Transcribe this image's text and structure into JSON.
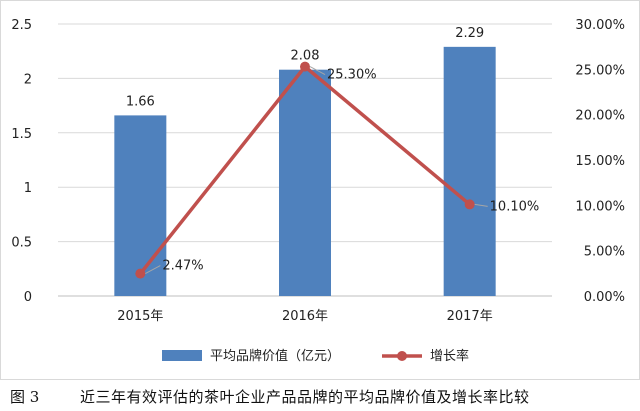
{
  "chart_data": {
    "type": "bar+line",
    "categories": [
      "2015年",
      "2016年",
      "2017年"
    ],
    "series": [
      {
        "name": "平均品牌价值（亿元）",
        "type": "bar",
        "axis": "left",
        "color": "#4f81bd",
        "values": [
          1.66,
          2.08,
          2.29
        ],
        "labels": [
          "1.66",
          "2.08",
          "2.29"
        ]
      },
      {
        "name": "增长率",
        "type": "line",
        "axis": "right",
        "color": "#c0504d",
        "values": [
          2.47,
          25.3,
          10.1
        ],
        "labels": [
          "2.47%",
          "25.30%",
          "10.10%"
        ]
      }
    ],
    "y_left": {
      "min": 0,
      "max": 2.5,
      "ticks": [
        "0",
        "0.5",
        "1",
        "1.5",
        "2",
        "2.5"
      ]
    },
    "y_right": {
      "min": 0,
      "max": 30,
      "ticks": [
        "0.00%",
        "5.00%",
        "10.00%",
        "15.00%",
        "20.00%",
        "25.00%",
        "30.00%"
      ]
    },
    "grid": true,
    "legend_position": "bottom"
  },
  "caption": {
    "number": "图 3",
    "text": "近三年有效评估的茶叶企业产品品牌的平均品牌价值及增长率比较"
  }
}
